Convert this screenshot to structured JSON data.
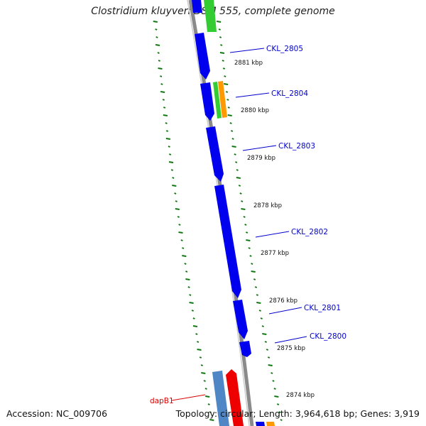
{
  "title": "Clostridium kluyveri DSM 555, complete genome",
  "accession": "Accession: NC_009706",
  "summary": "Topology: circular; Length: 3,964,618 bp; Genes: 3,919",
  "kbp_labels": [
    "2881 kbp",
    "2880 kbp",
    "2879 kbp",
    "2878 kbp",
    "2877 kbp",
    "2876 kbp",
    "2875 kbp",
    "2874 kbp"
  ],
  "gene_labels": [
    "CKL_2805",
    "CKL_2804",
    "CKL_2803",
    "CKL_2802",
    "CKL_2801",
    "CKL_2800",
    "dapB1"
  ],
  "colors": {
    "cds": "#0000ee",
    "green_feature": "#33cc33",
    "orange_feature": "#ff9900",
    "red_feature": "#ee0000",
    "steelblue_feature": "#4f86c6",
    "backbone": "#8a8a8a",
    "gc_ticks": "#117711",
    "gene_label": "#0000cc",
    "dapB1_label": "#dd0000"
  }
}
